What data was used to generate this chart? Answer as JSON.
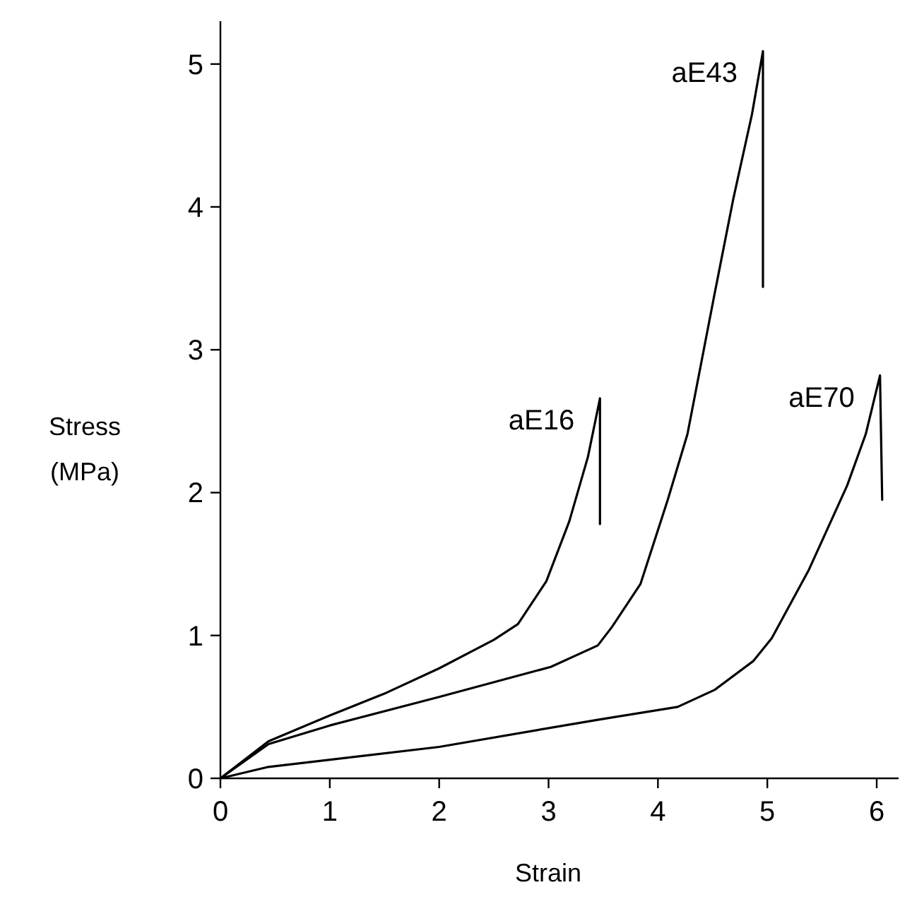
{
  "chart_data": {
    "type": "line",
    "xlabel": "Strain",
    "ylabel": "Stress (MPa)",
    "xlim": [
      0,
      6.2
    ],
    "ylim": [
      0,
      5.3
    ],
    "xticks": [
      0,
      1,
      2,
      3,
      4,
      5,
      6
    ],
    "yticks": [
      0,
      1,
      2,
      3,
      4,
      5
    ],
    "grid": false,
    "marker": "none",
    "line_style": "solid",
    "series": [
      {
        "name": "aE16",
        "color": "#000000",
        "x": [
          0,
          0.44,
          1.0,
          1.52,
          2.0,
          2.5,
          2.72,
          2.98,
          3.19,
          3.36,
          3.47,
          3.47
        ],
        "values": [
          0,
          0.26,
          0.44,
          0.6,
          0.77,
          0.97,
          1.08,
          1.38,
          1.8,
          2.25,
          2.66,
          1.78
        ]
      },
      {
        "name": "aE43",
        "color": "#000000",
        "x": [
          0,
          0.44,
          1.0,
          2.0,
          3.02,
          3.45,
          3.58,
          3.84,
          4.09,
          4.27,
          4.52,
          4.69,
          4.86,
          4.96,
          4.96
        ],
        "values": [
          0,
          0.24,
          0.37,
          0.57,
          0.78,
          0.93,
          1.06,
          1.36,
          1.95,
          2.41,
          3.4,
          4.06,
          4.65,
          5.09,
          3.44
        ]
      },
      {
        "name": "aE70",
        "color": "#000000",
        "x": [
          0,
          0.44,
          2.0,
          3.45,
          4.18,
          4.52,
          4.87,
          5.04,
          5.38,
          5.73,
          5.9,
          6.03,
          6.05
        ],
        "values": [
          0,
          0.08,
          0.22,
          0.41,
          0.5,
          0.62,
          0.82,
          0.98,
          1.46,
          2.05,
          2.41,
          2.82,
          1.95
        ]
      }
    ]
  }
}
